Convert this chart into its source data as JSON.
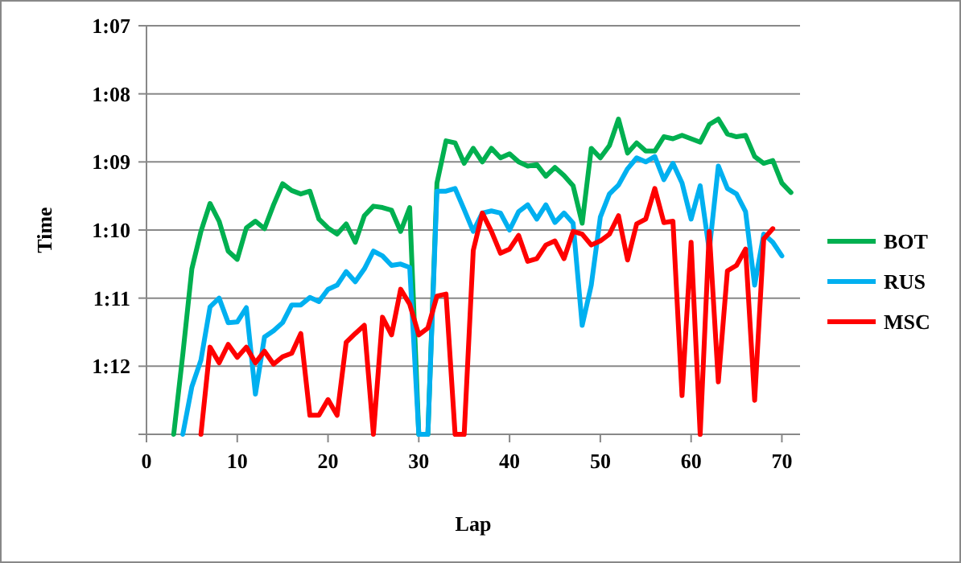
{
  "chart_data": {
    "type": "line",
    "xlabel": "Lap",
    "ylabel": "Time",
    "xlim": [
      0,
      72
    ],
    "xticks": [
      0,
      10,
      20,
      30,
      40,
      50,
      60,
      70
    ],
    "ylim": [
      73,
      67
    ],
    "yticks": [
      {
        "value": 67,
        "label": "1:07"
      },
      {
        "value": 68,
        "label": "1:08"
      },
      {
        "value": 69,
        "label": "1:09"
      },
      {
        "value": 70,
        "label": "1:10"
      },
      {
        "value": 71,
        "label": "1:11"
      },
      {
        "value": 72,
        "label": "1:12"
      },
      {
        "value": 73,
        "label": null
      }
    ],
    "grid": "y",
    "legend": "right",
    "marker": "none",
    "line_style": "solid",
    "x": [
      3,
      4,
      5,
      6,
      7,
      8,
      9,
      10,
      11,
      12,
      13,
      14,
      15,
      16,
      17,
      18,
      19,
      20,
      21,
      22,
      23,
      24,
      25,
      26,
      27,
      28,
      29,
      30,
      31,
      32,
      33,
      34,
      35,
      36,
      37,
      38,
      39,
      40,
      41,
      42,
      43,
      44,
      45,
      46,
      47,
      48,
      49,
      50,
      51,
      52,
      53,
      54,
      55,
      56,
      57,
      58,
      59,
      60,
      61,
      62,
      63,
      64,
      65,
      66,
      67,
      68,
      69,
      70,
      71
    ],
    "series": [
      {
        "name": "BOT",
        "color": "#00b050",
        "values": [
          73,
          71.83,
          70.57,
          70.02,
          69.61,
          69.87,
          70.31,
          70.43,
          69.97,
          69.87,
          69.98,
          69.63,
          69.32,
          69.42,
          69.47,
          69.43,
          69.84,
          69.97,
          70.06,
          69.91,
          70.18,
          69.79,
          69.65,
          69.67,
          69.71,
          70.02,
          69.67,
          73,
          73,
          69.31,
          68.69,
          68.72,
          69.02,
          68.8,
          69.0,
          68.8,
          68.94,
          68.88,
          69.0,
          69.06,
          69.04,
          69.21,
          69.08,
          69.2,
          69.35,
          69.9,
          68.8,
          68.94,
          68.76,
          68.37,
          68.87,
          68.72,
          68.84,
          68.84,
          68.63,
          68.66,
          68.61,
          68.66,
          68.71,
          68.45,
          68.37,
          68.59,
          68.63,
          68.61,
          68.92,
          69.02,
          68.98,
          69.31,
          69.45
        ]
      },
      {
        "name": "RUS",
        "color": "#00b0f0",
        "values": [
          null,
          73,
          72.3,
          71.91,
          71.13,
          71.0,
          71.36,
          71.35,
          71.14,
          72.41,
          71.57,
          71.48,
          71.36,
          71.1,
          71.1,
          70.99,
          71.05,
          70.87,
          70.81,
          70.61,
          70.76,
          70.57,
          70.31,
          70.38,
          70.52,
          70.5,
          70.55,
          73,
          73,
          69.43,
          69.43,
          69.39,
          69.7,
          70.02,
          69.75,
          69.72,
          69.75,
          70.0,
          69.73,
          69.63,
          69.84,
          69.63,
          69.89,
          69.75,
          69.9,
          71.4,
          70.81,
          69.81,
          69.47,
          69.34,
          69.1,
          68.94,
          69.0,
          68.92,
          69.26,
          69.02,
          69.31,
          69.84,
          69.35,
          70.3,
          69.06,
          69.39,
          69.47,
          69.73,
          70.81,
          70.06,
          70.18,
          70.38,
          null
        ]
      },
      {
        "name": "MSC",
        "color": "#ff0000",
        "values": [
          null,
          null,
          null,
          73,
          71.72,
          71.95,
          71.68,
          71.87,
          71.72,
          71.95,
          71.78,
          71.97,
          71.86,
          71.81,
          71.52,
          72.72,
          72.72,
          72.49,
          72.72,
          71.65,
          71.52,
          71.4,
          73,
          71.28,
          71.54,
          70.87,
          71.09,
          71.54,
          71.44,
          70.97,
          70.94,
          73,
          73,
          70.3,
          69.75,
          70.02,
          70.34,
          70.28,
          70.08,
          70.46,
          70.42,
          70.22,
          70.16,
          70.42,
          70.02,
          70.06,
          70.22,
          70.16,
          70.06,
          69.79,
          70.44,
          69.91,
          69.84,
          69.39,
          69.89,
          69.87,
          72.43,
          70.18,
          73,
          70.02,
          72.23,
          70.6,
          70.52,
          70.28,
          72.5,
          70.13,
          69.98,
          null,
          null
        ]
      }
    ]
  }
}
